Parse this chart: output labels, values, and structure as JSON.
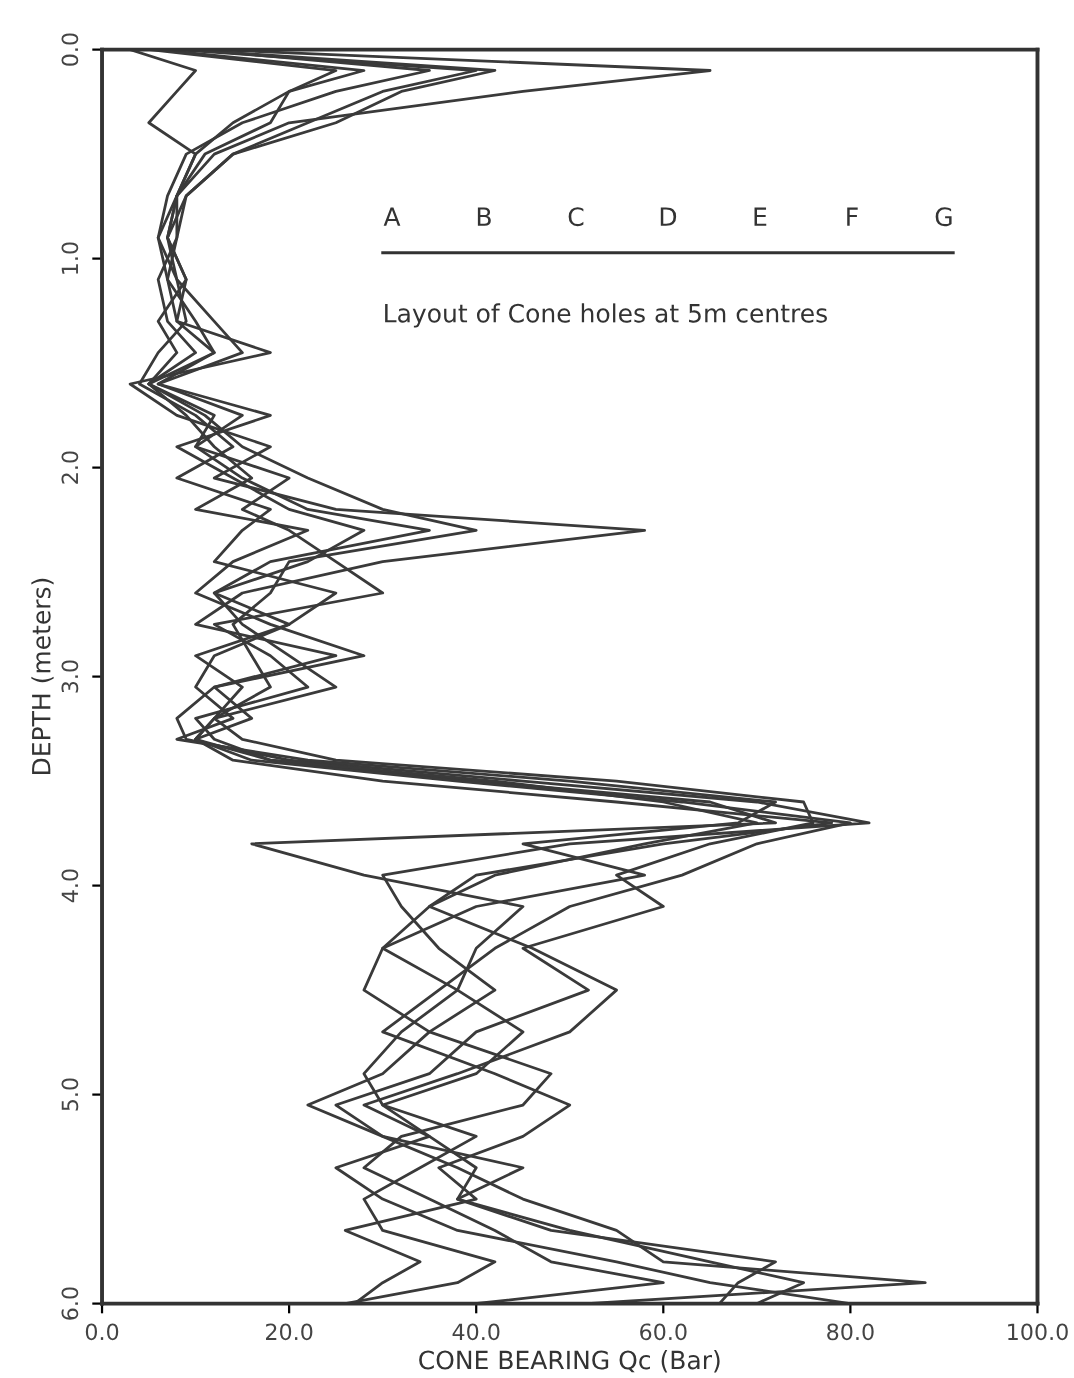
{
  "chart_data": {
    "type": "line",
    "xlabel": "CONE BEARING Qc (Bar)",
    "ylabel": "DEPTH (meters)",
    "xlim": [
      0,
      100
    ],
    "ylim": [
      6,
      0
    ],
    "xticks": [
      {
        "value": 0,
        "label": "0.0"
      },
      {
        "value": 20,
        "label": "20.0"
      },
      {
        "value": 40,
        "label": "40.0"
      },
      {
        "value": 60,
        "label": "60.0"
      },
      {
        "value": 80,
        "label": "80.0"
      },
      {
        "value": 100,
        "label": "100.0"
      }
    ],
    "yticks": [
      {
        "value": 0,
        "label": "0.0"
      },
      {
        "value": 1,
        "label": "1.0"
      },
      {
        "value": 2,
        "label": "2.0"
      },
      {
        "value": 3,
        "label": "3.0"
      },
      {
        "value": 4,
        "label": "4.0"
      },
      {
        "value": 5,
        "label": "5.0"
      },
      {
        "value": 6,
        "label": "6.0"
      }
    ],
    "grid": false,
    "legend": false,
    "marker": "none",
    "line_style": "solid",
    "annotations": [
      "A",
      "B",
      "C",
      "D",
      "E",
      "F",
      "G",
      "Layout of Cone holes at 5m centres"
    ],
    "series": [
      {
        "color": "#3a3a3a",
        "x": [
          12,
          65,
          45,
          20,
          12,
          8,
          7,
          9,
          6,
          8,
          5,
          12,
          10,
          15,
          22,
          35,
          18,
          12,
          20,
          10,
          15,
          12,
          10,
          14,
          30,
          55,
          78,
          60,
          40,
          35,
          30,
          38,
          45,
          40,
          30,
          35,
          40,
          38,
          50,
          65,
          75,
          70
        ],
        "values": [
          0,
          0.1,
          0.2,
          0.35,
          0.5,
          0.7,
          0.9,
          1.1,
          1.3,
          1.45,
          1.6,
          1.75,
          1.9,
          2.05,
          2.2,
          2.3,
          2.45,
          2.6,
          2.75,
          2.9,
          3.05,
          3.2,
          3.3,
          3.4,
          3.5,
          3.6,
          3.7,
          3.8,
          3.95,
          4.1,
          4.3,
          4.5,
          4.7,
          4.9,
          5.05,
          5.2,
          5.35,
          5.5,
          5.65,
          5.8,
          5.9,
          6
        ]
      },
      {
        "color": "#3a3a3a",
        "x": [
          3,
          10,
          8,
          5,
          10,
          8,
          6,
          7,
          8,
          18,
          3,
          8,
          18,
          12,
          25,
          58,
          30,
          15,
          10,
          25,
          12,
          8,
          9,
          20,
          45,
          70,
          82,
          50,
          30,
          32,
          36,
          42,
          35,
          30,
          22,
          30,
          38,
          45,
          55,
          60,
          88,
          52
        ],
        "values": [
          0,
          0.1,
          0.2,
          0.35,
          0.5,
          0.7,
          0.9,
          1.1,
          1.3,
          1.45,
          1.6,
          1.75,
          1.9,
          2.05,
          2.2,
          2.3,
          2.45,
          2.6,
          2.75,
          2.9,
          3.05,
          3.2,
          3.3,
          3.4,
          3.5,
          3.6,
          3.7,
          3.8,
          3.95,
          4.1,
          4.3,
          4.5,
          4.7,
          4.9,
          5.05,
          5.2,
          5.35,
          5.5,
          5.65,
          5.8,
          5.9,
          6
        ]
      },
      {
        "color": "#3a3a3a",
        "x": [
          8,
          40,
          30,
          22,
          14,
          9,
          8,
          7,
          10,
          12,
          6,
          15,
          10,
          20,
          15,
          20,
          25,
          30,
          12,
          18,
          22,
          10,
          12,
          18,
          40,
          65,
          72,
          16,
          28,
          45,
          40,
          38,
          32,
          28,
          30,
          40,
          34,
          28,
          30,
          42,
          38,
          26
        ],
        "values": [
          0,
          0.1,
          0.2,
          0.35,
          0.5,
          0.7,
          0.9,
          1.1,
          1.3,
          1.45,
          1.6,
          1.75,
          1.9,
          2.05,
          2.2,
          2.3,
          2.45,
          2.6,
          2.75,
          2.9,
          3.05,
          3.2,
          3.3,
          3.4,
          3.5,
          3.6,
          3.7,
          3.8,
          3.95,
          4.1,
          4.3,
          4.5,
          4.7,
          4.9,
          5.05,
          5.2,
          5.35,
          5.5,
          5.65,
          5.8,
          5.9,
          6
        ]
      },
      {
        "color": "#3a3a3a",
        "x": [
          10,
          35,
          25,
          15,
          9,
          7,
          6,
          8,
          9,
          6,
          4,
          10,
          14,
          8,
          18,
          15,
          12,
          25,
          20,
          12,
          10,
          14,
          8,
          22,
          50,
          72,
          68,
          45,
          58,
          40,
          30,
          28,
          35,
          48,
          45,
          32,
          28,
          35,
          42,
          48,
          60,
          40
        ],
        "values": [
          0,
          0.1,
          0.2,
          0.35,
          0.5,
          0.7,
          0.9,
          1.1,
          1.3,
          1.45,
          1.6,
          1.75,
          1.9,
          2.05,
          2.2,
          2.3,
          2.45,
          2.6,
          2.75,
          2.9,
          3.05,
          3.2,
          3.3,
          3.4,
          3.5,
          3.6,
          3.7,
          3.8,
          3.95,
          4.1,
          4.3,
          4.5,
          4.7,
          4.9,
          5.05,
          5.2,
          5.35,
          5.5,
          5.65,
          5.8,
          5.9,
          6
        ]
      },
      {
        "color": "#3a3a3a",
        "x": [
          6,
          28,
          20,
          18,
          11,
          8,
          8,
          6,
          7,
          10,
          5,
          9,
          12,
          16,
          10,
          22,
          14,
          10,
          18,
          28,
          12,
          16,
          10,
          18,
          42,
          60,
          70,
          58,
          42,
          35,
          46,
          55,
          50,
          38,
          28,
          35,
          25,
          30,
          38,
          55,
          65,
          80
        ],
        "values": [
          0,
          0.1,
          0.2,
          0.35,
          0.5,
          0.7,
          0.9,
          1.1,
          1.3,
          1.45,
          1.6,
          1.75,
          1.9,
          2.05,
          2.2,
          2.3,
          2.45,
          2.6,
          2.75,
          2.9,
          3.05,
          3.2,
          3.3,
          3.4,
          3.5,
          3.6,
          3.7,
          3.8,
          3.95,
          4.1,
          4.3,
          4.5,
          4.7,
          4.9,
          5.05,
          5.2,
          5.35,
          5.5,
          5.65,
          5.8,
          5.9,
          6
        ]
      },
      {
        "color": "#3a3a3a",
        "x": [
          9,
          42,
          32,
          25,
          14,
          9,
          7,
          8,
          12,
          15,
          6,
          18,
          8,
          14,
          20,
          28,
          22,
          12,
          15,
          20,
          25,
          12,
          15,
          25,
          55,
          75,
          76,
          65,
          55,
          60,
          45,
          52,
          40,
          35,
          25,
          30,
          45,
          38,
          48,
          72,
          68,
          66
        ],
        "values": [
          0,
          0.1,
          0.2,
          0.35,
          0.5,
          0.7,
          0.9,
          1.1,
          1.3,
          1.45,
          1.6,
          1.75,
          1.9,
          2.05,
          2.2,
          2.3,
          2.45,
          2.6,
          2.75,
          2.9,
          3.05,
          3.2,
          3.3,
          3.4,
          3.5,
          3.6,
          3.7,
          3.8,
          3.95,
          4.1,
          4.3,
          4.5,
          4.7,
          4.9,
          5.05,
          5.2,
          5.35,
          5.5,
          5.65,
          5.8,
          5.9,
          6
        ]
      },
      {
        "color": "#3a3a3a",
        "x": [
          5,
          25,
          20,
          14,
          10,
          8,
          7,
          9,
          8,
          12,
          5,
          11,
          15,
          22,
          30,
          40,
          20,
          18,
          14,
          16,
          18,
          12,
          10,
          16,
          38,
          62,
          80,
          70,
          62,
          50,
          42,
          36,
          30,
          42,
          50,
          45,
          36,
          40,
          26,
          34,
          30,
          27
        ],
        "values": [
          0,
          0.1,
          0.2,
          0.35,
          0.5,
          0.7,
          0.9,
          1.1,
          1.3,
          1.45,
          1.6,
          1.75,
          1.9,
          2.05,
          2.2,
          2.3,
          2.45,
          2.6,
          2.75,
          2.9,
          3.05,
          3.2,
          3.3,
          3.4,
          3.5,
          3.6,
          3.7,
          3.8,
          3.95,
          4.1,
          4.3,
          4.5,
          4.7,
          4.9,
          5.05,
          5.2,
          5.35,
          5.5,
          5.65,
          5.8,
          5.9,
          6
        ]
      }
    ]
  }
}
